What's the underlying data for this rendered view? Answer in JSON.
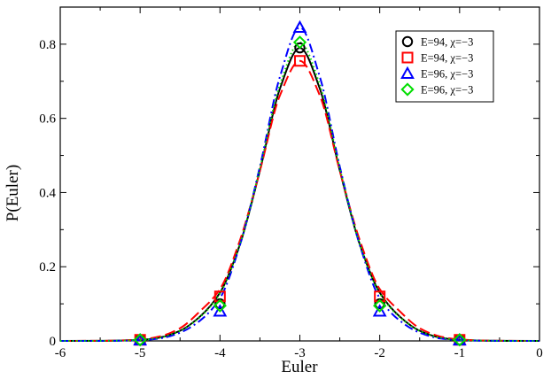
{
  "chart_data": {
    "type": "line",
    "title": "",
    "xlabel": "Euler",
    "ylabel": "P(Euler)",
    "xlim": [
      -6,
      0
    ],
    "ylim": [
      0,
      0.9
    ],
    "xticks": [
      -6,
      -5,
      -4,
      -3,
      -2,
      -1,
      0
    ],
    "xtick_labels": [
      "-6",
      "-5",
      "-4",
      "-3",
      "-2",
      "-1",
      "0"
    ],
    "yticks": [
      0,
      0.2,
      0.4,
      0.6,
      0.8
    ],
    "ytick_labels": [
      "0",
      "0.2",
      "0.4",
      "0.6",
      "0.8"
    ],
    "grid": false,
    "legend_position": "top-right",
    "series": [
      {
        "name": "E=94, χ=−3",
        "color": "#000000",
        "marker": "circle",
        "line_style": "solid",
        "markers": {
          "x": [
            -5,
            -4,
            -3,
            -2,
            -1
          ],
          "y": [
            0.003,
            0.1,
            0.79,
            0.1,
            0.003
          ]
        },
        "curve": {
          "x": [
            -6,
            -5.5,
            -5,
            -4.75,
            -4.5,
            -4.25,
            -4,
            -3.75,
            -3.5,
            -3.25,
            -3,
            -2.75,
            -2.5,
            -2.25,
            -2,
            -1.75,
            -1.5,
            -1.25,
            -1,
            -0.5,
            0
          ],
          "y": [
            0,
            0.0002,
            0.0026,
            0.0093,
            0.0274,
            0.0658,
            0.1301,
            0.2605,
            0.4596,
            0.6799,
            0.79,
            0.6799,
            0.4596,
            0.2605,
            0.1301,
            0.0658,
            0.0274,
            0.0093,
            0.0026,
            0.0002,
            0
          ]
        }
      },
      {
        "name": "E=94, χ=−3",
        "color": "#ff0000",
        "marker": "square",
        "line_style": "dashed",
        "markers": {
          "x": [
            -5,
            -4,
            -3,
            -2,
            -1
          ],
          "y": [
            0.003,
            0.12,
            0.755,
            0.12,
            0.003
          ]
        },
        "curve": {
          "x": [
            -6,
            -5.5,
            -5,
            -4.75,
            -4.5,
            -4.25,
            -4,
            -3.75,
            -3.5,
            -3.25,
            -3,
            -2.75,
            -2.5,
            -2.25,
            -2,
            -1.75,
            -1.5,
            -1.25,
            -1,
            -0.5,
            0
          ],
          "y": [
            0,
            0.0003,
            0.0037,
            0.0124,
            0.0343,
            0.0801,
            0.1397,
            0.2715,
            0.4587,
            0.6616,
            0.755,
            0.6616,
            0.4587,
            0.2715,
            0.1397,
            0.0801,
            0.0343,
            0.0124,
            0.0037,
            0.0003,
            0
          ]
        }
      },
      {
        "name": "E=96, χ=−3",
        "color": "#0000ff",
        "marker": "triangle",
        "line_style": "dashdot",
        "markers": {
          "x": [
            -5,
            -4,
            -3,
            -2,
            -1
          ],
          "y": [
            0.002,
            0.08,
            0.845,
            0.08,
            0.002
          ]
        },
        "curve": {
          "x": [
            -6,
            -5.5,
            -5,
            -4.75,
            -4.5,
            -4.25,
            -4,
            -3.75,
            -3.5,
            -3.25,
            -3,
            -2.75,
            -2.5,
            -2.25,
            -2,
            -1.75,
            -1.5,
            -1.25,
            -1,
            -0.5,
            0
          ],
          "y": [
            0,
            0.0001,
            0.0017,
            0.0069,
            0.0222,
            0.0548,
            0.1151,
            0.2587,
            0.4701,
            0.7118,
            0.845,
            0.7118,
            0.4701,
            0.2587,
            0.1151,
            0.0548,
            0.0222,
            0.0069,
            0.0017,
            0.0001,
            0
          ]
        }
      },
      {
        "name": "E=96, χ=−3",
        "color": "#00dd00",
        "marker": "diamond",
        "line_style": "dotted",
        "markers": {
          "x": [
            -5,
            -4,
            -3,
            -2,
            -1
          ],
          "y": [
            0.003,
            0.095,
            0.805,
            0.095,
            0.003
          ]
        },
        "curve": {
          "x": [
            -6,
            -5.5,
            -5,
            -4.75,
            -4.5,
            -4.25,
            -4,
            -3.75,
            -3.5,
            -3.25,
            -3,
            -2.75,
            -2.5,
            -2.25,
            -2,
            -1.75,
            -1.5,
            -1.25,
            -1,
            -0.5,
            0
          ],
          "y": [
            0,
            0.0002,
            0.0025,
            0.0091,
            0.027,
            0.0644,
            0.1285,
            0.2617,
            0.4651,
            0.6902,
            0.805,
            0.6902,
            0.4651,
            0.2617,
            0.1285,
            0.0644,
            0.027,
            0.0091,
            0.0025,
            0.0002,
            0
          ]
        }
      }
    ]
  }
}
